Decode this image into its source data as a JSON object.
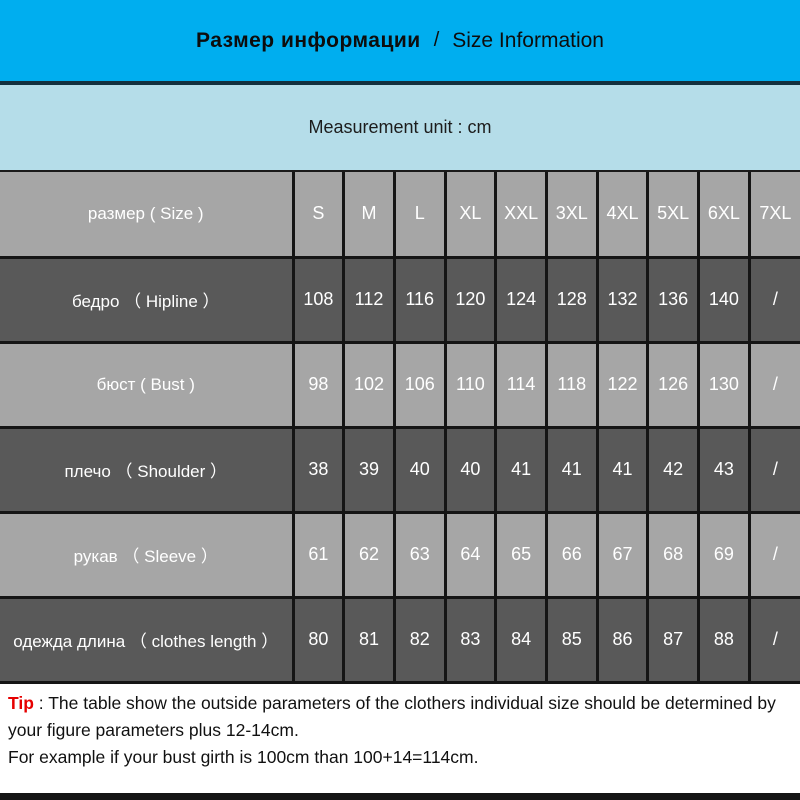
{
  "header": {
    "title_ru": "Размер информации",
    "separator": "/",
    "title_en": "Size Information"
  },
  "unit_bar": {
    "text": "Measurement unit : cm"
  },
  "chart_data": {
    "type": "table",
    "title": "Размер информации / Size Information",
    "unit": "cm",
    "columns": [
      "S",
      "M",
      "L",
      "XL",
      "XXL",
      "3XL",
      "4XL",
      "5XL",
      "6XL",
      "7XL"
    ],
    "rows": [
      {
        "label": "размер ( Size )",
        "shade": "light",
        "values": [
          "S",
          "M",
          "L",
          "XL",
          "XXL",
          "3XL",
          "4XL",
          "5XL",
          "6XL",
          "7XL"
        ]
      },
      {
        "label": "бедро （ Hipline ）",
        "shade": "dark",
        "values": [
          "108",
          "112",
          "116",
          "120",
          "124",
          "128",
          "132",
          "136",
          "140",
          "/"
        ]
      },
      {
        "label": "бюст ( Bust )",
        "shade": "light",
        "values": [
          "98",
          "102",
          "106",
          "110",
          "114",
          "118",
          "122",
          "126",
          "130",
          "/"
        ]
      },
      {
        "label": "плечо （ Shoulder ）",
        "shade": "dark",
        "values": [
          "38",
          "39",
          "40",
          "40",
          "41",
          "41",
          "41",
          "42",
          "43",
          "/"
        ]
      },
      {
        "label": "рукав （ Sleeve ）",
        "shade": "light",
        "values": [
          "61",
          "62",
          "63",
          "64",
          "65",
          "66",
          "67",
          "68",
          "69",
          "/"
        ]
      },
      {
        "label": "одежда  длина （ clothes length ）",
        "shade": "dark",
        "values": [
          "80",
          "81",
          "82",
          "83",
          "84",
          "85",
          "86",
          "87",
          "88",
          "/"
        ]
      }
    ]
  },
  "tip": {
    "label": "Tip",
    "separator": " : ",
    "line1": "The table show the outside parameters of the clothers individual size should be determined by your figure parameters plus 12-14cm.",
    "line2": "For example if your bust girth is 100cm than 100+14=114cm."
  },
  "colors": {
    "header_bg": "#00AEEF",
    "header_border": "#12303f",
    "unit_bar_bg": "#B5DDE9",
    "row_light_bg": "#A6A6A6",
    "row_dark_bg": "#595959",
    "grid_line": "#151515",
    "table_text": "#FFFFFF",
    "tip_red": "#E60000",
    "body_text": "#111111"
  }
}
